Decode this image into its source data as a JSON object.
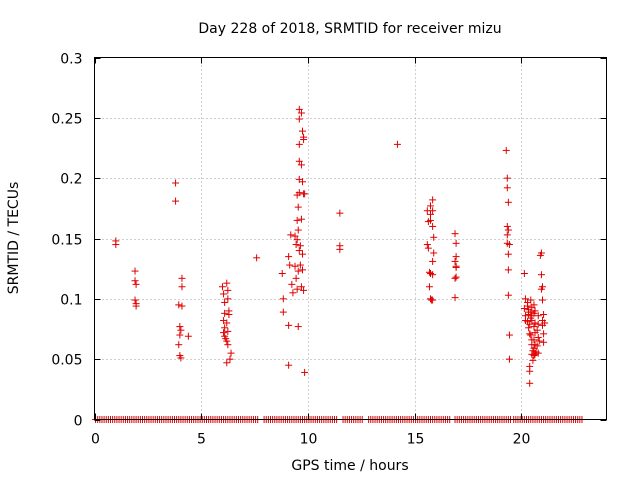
{
  "chart_data": {
    "type": "scatter",
    "title": "Day 228 of 2018, SRMTID for receiver mizu",
    "xlabel": "GPS time / hours",
    "ylabel": "SRMTID / TECUs",
    "xlim": [
      0,
      24
    ],
    "ylim": [
      0,
      0.3
    ],
    "xticks": [
      0,
      5,
      10,
      15,
      20
    ],
    "yticks": [
      0,
      0.05,
      0.1,
      0.15,
      0.2,
      0.25,
      0.3
    ],
    "xtick_labels": [
      "0",
      "5",
      "10",
      "15",
      "20"
    ],
    "ytick_labels": [
      "0",
      "0.05",
      "0.1",
      "0.15",
      "0.2",
      "0.25",
      "0.3"
    ],
    "grid": true,
    "marker": "+",
    "color": "#e00000",
    "baseline_zero_segments": [
      [
        0.05,
        7.65
      ],
      [
        7.95,
        11.4
      ],
      [
        11.65,
        12.6
      ],
      [
        12.85,
        16.65
      ],
      [
        16.9,
        19.5
      ],
      [
        19.65,
        22.9
      ]
    ],
    "series": [
      {
        "name": "SRMTID",
        "points": [
          [
            1.0,
            0.148
          ],
          [
            1.0,
            0.145
          ],
          [
            1.9,
            0.123
          ],
          [
            1.9,
            0.115
          ],
          [
            1.95,
            0.112
          ],
          [
            1.9,
            0.099
          ],
          [
            1.95,
            0.096
          ],
          [
            1.95,
            0.094
          ],
          [
            3.8,
            0.196
          ],
          [
            3.8,
            0.181
          ],
          [
            3.95,
            0.095
          ],
          [
            4.0,
            0.077
          ],
          [
            4.05,
            0.074
          ],
          [
            4.0,
            0.07
          ],
          [
            3.95,
            0.062
          ],
          [
            4.0,
            0.053
          ],
          [
            4.05,
            0.051
          ],
          [
            4.1,
            0.117
          ],
          [
            4.1,
            0.11
          ],
          [
            4.1,
            0.094
          ],
          [
            4.4,
            0.069
          ],
          [
            6.0,
            0.11
          ],
          [
            6.05,
            0.104
          ],
          [
            6.1,
            0.097
          ],
          [
            6.1,
            0.088
          ],
          [
            6.05,
            0.082
          ],
          [
            6.1,
            0.076
          ],
          [
            6.05,
            0.072
          ],
          [
            6.1,
            0.069
          ],
          [
            6.15,
            0.067
          ],
          [
            6.2,
            0.065
          ],
          [
            6.2,
            0.113
          ],
          [
            6.25,
            0.107
          ],
          [
            6.25,
            0.1
          ],
          [
            6.3,
            0.09
          ],
          [
            6.3,
            0.087
          ],
          [
            6.2,
            0.08
          ],
          [
            6.25,
            0.073
          ],
          [
            6.25,
            0.062
          ],
          [
            6.2,
            0.047
          ],
          [
            6.4,
            0.055
          ],
          [
            6.35,
            0.05
          ],
          [
            7.6,
            0.134
          ],
          [
            8.8,
            0.121
          ],
          [
            8.85,
            0.1
          ],
          [
            8.85,
            0.089
          ],
          [
            9.1,
            0.135
          ],
          [
            9.15,
            0.128
          ],
          [
            9.1,
            0.078
          ],
          [
            9.1,
            0.045
          ],
          [
            9.2,
            0.153
          ],
          [
            9.25,
            0.112
          ],
          [
            9.3,
            0.105
          ],
          [
            9.4,
            0.152
          ],
          [
            9.45,
            0.145
          ],
          [
            9.4,
            0.127
          ],
          [
            9.45,
            0.117
          ],
          [
            9.5,
            0.186
          ],
          [
            9.55,
            0.176
          ],
          [
            9.5,
            0.165
          ],
          [
            9.55,
            0.157
          ],
          [
            9.5,
            0.149
          ],
          [
            9.55,
            0.123
          ],
          [
            9.5,
            0.108
          ],
          [
            9.55,
            0.077
          ],
          [
            9.6,
            0.257
          ],
          [
            9.6,
            0.249
          ],
          [
            9.6,
            0.228
          ],
          [
            9.6,
            0.214
          ],
          [
            9.6,
            0.199
          ],
          [
            9.6,
            0.188
          ],
          [
            9.65,
            0.144
          ],
          [
            9.6,
            0.14
          ],
          [
            9.65,
            0.128
          ],
          [
            9.7,
            0.254
          ],
          [
            9.75,
            0.239
          ],
          [
            9.7,
            0.211
          ],
          [
            9.75,
            0.197
          ],
          [
            9.8,
            0.187
          ],
          [
            9.7,
            0.166
          ],
          [
            9.75,
            0.137
          ],
          [
            9.75,
            0.124
          ],
          [
            9.7,
            0.11
          ],
          [
            9.8,
            0.234
          ],
          [
            9.8,
            0.232
          ],
          [
            9.85,
            0.187
          ],
          [
            9.8,
            0.107
          ],
          [
            9.85,
            0.039
          ],
          [
            11.5,
            0.171
          ],
          [
            11.5,
            0.144
          ],
          [
            11.5,
            0.141
          ],
          [
            14.2,
            0.228
          ],
          [
            15.6,
            0.173
          ],
          [
            15.65,
            0.164
          ],
          [
            15.6,
            0.145
          ],
          [
            15.65,
            0.142
          ],
          [
            15.7,
            0.122
          ],
          [
            15.75,
            0.121
          ],
          [
            15.7,
            0.11
          ],
          [
            15.75,
            0.1
          ],
          [
            15.8,
            0.099
          ],
          [
            15.75,
            0.177
          ],
          [
            15.75,
            0.17
          ],
          [
            15.75,
            0.165
          ],
          [
            15.85,
            0.182
          ],
          [
            15.85,
            0.173
          ],
          [
            15.85,
            0.16
          ],
          [
            15.9,
            0.151
          ],
          [
            15.9,
            0.138
          ],
          [
            15.85,
            0.131
          ],
          [
            15.85,
            0.12
          ],
          [
            15.85,
            0.099
          ],
          [
            16.9,
            0.154
          ],
          [
            16.95,
            0.146
          ],
          [
            16.95,
            0.135
          ],
          [
            16.9,
            0.131
          ],
          [
            16.95,
            0.127
          ],
          [
            16.95,
            0.118
          ],
          [
            16.9,
            0.117
          ],
          [
            16.9,
            0.101
          ],
          [
            16.95,
            0.126
          ],
          [
            19.3,
            0.223
          ],
          [
            19.35,
            0.2
          ],
          [
            19.35,
            0.192
          ],
          [
            19.4,
            0.18
          ],
          [
            19.35,
            0.16
          ],
          [
            19.4,
            0.157
          ],
          [
            19.35,
            0.153
          ],
          [
            19.35,
            0.146
          ],
          [
            19.45,
            0.145
          ],
          [
            19.4,
            0.137
          ],
          [
            19.4,
            0.124
          ],
          [
            19.4,
            0.103
          ],
          [
            19.45,
            0.07
          ],
          [
            19.45,
            0.05
          ],
          [
            20.15,
            0.121
          ],
          [
            20.2,
            0.1
          ],
          [
            20.15,
            0.092
          ],
          [
            20.2,
            0.086
          ],
          [
            20.2,
            0.082
          ],
          [
            20.3,
            0.097
          ],
          [
            20.3,
            0.094
          ],
          [
            20.35,
            0.091
          ],
          [
            20.35,
            0.089
          ],
          [
            20.35,
            0.087
          ],
          [
            20.3,
            0.081
          ],
          [
            20.4,
            0.079
          ],
          [
            20.35,
            0.076
          ],
          [
            20.4,
            0.071
          ],
          [
            20.45,
            0.099
          ],
          [
            20.5,
            0.093
          ],
          [
            20.45,
            0.089
          ],
          [
            20.5,
            0.086
          ],
          [
            20.45,
            0.084
          ],
          [
            20.5,
            0.082
          ],
          [
            20.45,
            0.07
          ],
          [
            20.5,
            0.066
          ],
          [
            20.5,
            0.062
          ],
          [
            20.55,
            0.057
          ],
          [
            20.5,
            0.054
          ],
          [
            20.55,
            0.049
          ],
          [
            20.4,
            0.044
          ],
          [
            20.4,
            0.04
          ],
          [
            20.4,
            0.03
          ],
          [
            20.6,
            0.095
          ],
          [
            20.65,
            0.09
          ],
          [
            20.6,
            0.088
          ],
          [
            20.65,
            0.08
          ],
          [
            20.6,
            0.077
          ],
          [
            20.65,
            0.072
          ],
          [
            20.6,
            0.066
          ],
          [
            20.65,
            0.062
          ],
          [
            20.6,
            0.059
          ],
          [
            20.7,
            0.056
          ],
          [
            20.65,
            0.054
          ],
          [
            20.6,
            0.053
          ],
          [
            20.8,
            0.086
          ],
          [
            20.8,
            0.079
          ],
          [
            20.75,
            0.074
          ],
          [
            20.8,
            0.068
          ],
          [
            20.85,
            0.065
          ],
          [
            20.75,
            0.061
          ],
          [
            20.8,
            0.055
          ],
          [
            20.9,
            0.136
          ],
          [
            20.95,
            0.138
          ],
          [
            20.95,
            0.12
          ],
          [
            21.0,
            0.11
          ],
          [
            20.95,
            0.108
          ],
          [
            21.0,
            0.099
          ],
          [
            21.05,
            0.087
          ],
          [
            21.0,
            0.082
          ],
          [
            21.0,
            0.078
          ],
          [
            21.05,
            0.071
          ],
          [
            21.05,
            0.064
          ],
          [
            21.1,
            0.08
          ]
        ]
      }
    ]
  }
}
